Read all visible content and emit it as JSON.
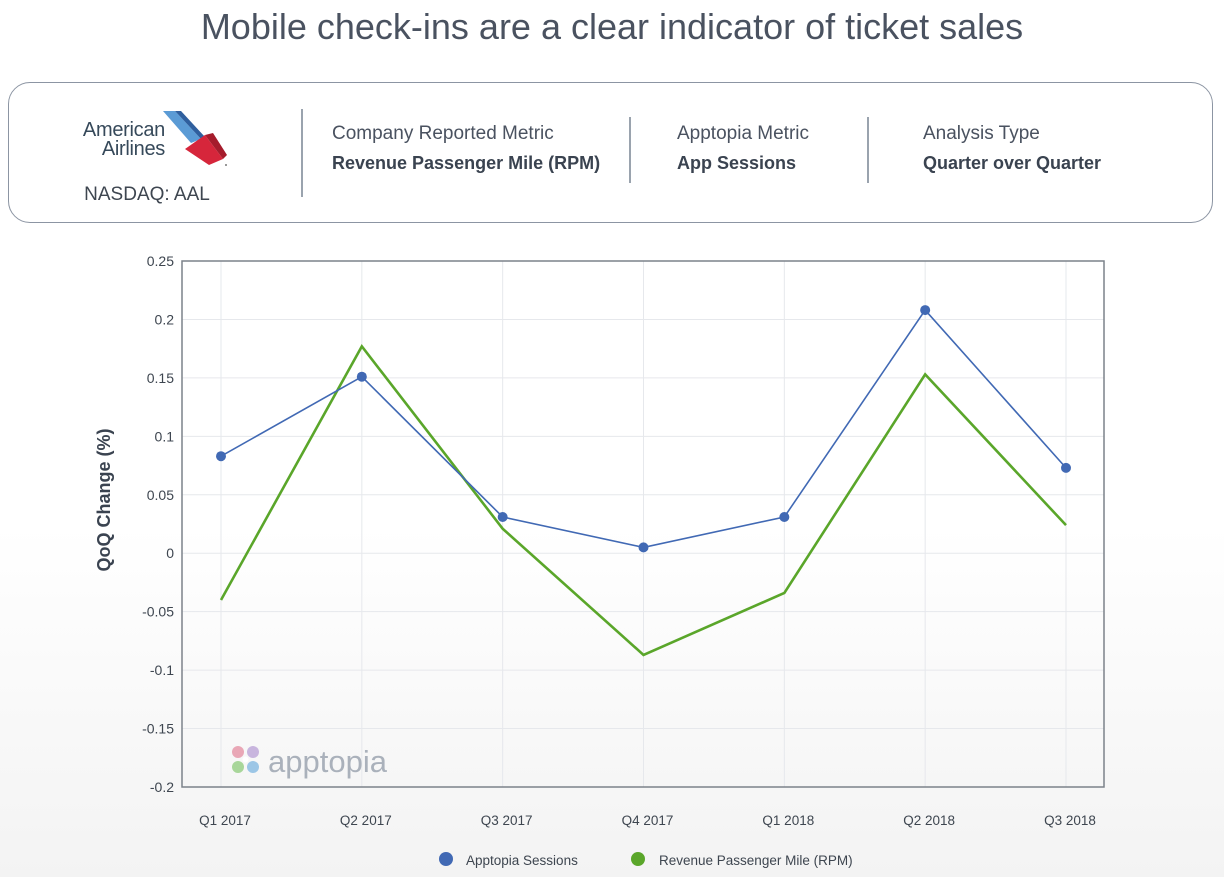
{
  "header": {
    "title": "Mobile check-ins are a clear indicator of ticket sales"
  },
  "company": {
    "logo_line1": "American",
    "logo_line2": "Airlines",
    "ticker": "NASDAQ: AAL"
  },
  "metrics": {
    "company_metric_label": "Company Reported Metric",
    "company_metric_value": "Revenue Passenger Mile (RPM)",
    "apptopia_metric_label": "Apptopia Metric",
    "apptopia_metric_value": "App Sessions",
    "analysis_type_label": "Analysis Type",
    "analysis_type_value": "Quarter over Quarter"
  },
  "watermark": "apptopia",
  "colors": {
    "sessions": "#4169b4",
    "rpm": "#5aa62a",
    "grid": "#e6e8ec",
    "frame": "#7c828a"
  },
  "chart_data": {
    "type": "line",
    "title": "",
    "xlabel": "",
    "ylabel": "QoQ Change (%)",
    "ylim": [
      -0.2,
      0.25
    ],
    "yticks": [
      0.25,
      0.2,
      0.15,
      0.1,
      0.05,
      0,
      -0.05,
      -0.1,
      -0.15,
      -0.2
    ],
    "ytick_labels": [
      "0.25",
      "0.2",
      "0.15",
      "0.1",
      "0.05",
      "0",
      "-0.05",
      "-0.1",
      "-0.15",
      "-0.2"
    ],
    "categories": [
      "Q1 2017",
      "Q2 2017",
      "Q3 2017",
      "Q4 2017",
      "Q1 2018",
      "Q2 2018",
      "Q3 2018"
    ],
    "grid": true,
    "legend_position": "bottom",
    "series": [
      {
        "name": "Apptopia Sessions",
        "values": [
          0.083,
          0.151,
          0.031,
          0.005,
          0.031,
          0.208,
          0.073
        ],
        "markers": true
      },
      {
        "name": "Revenue Passenger Mile (RPM)",
        "values": [
          -0.04,
          0.177,
          0.021,
          -0.087,
          -0.034,
          0.153,
          0.024
        ],
        "markers": false
      }
    ]
  }
}
